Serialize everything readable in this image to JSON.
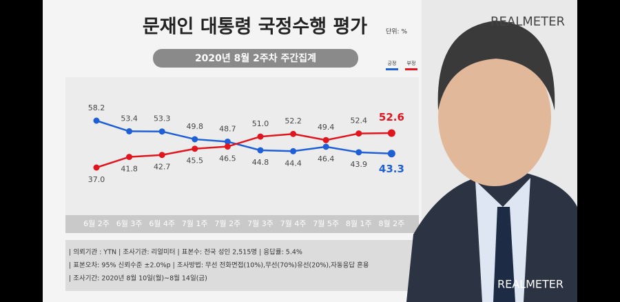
{
  "chart_data": {
    "type": "line",
    "title": "문재인 대통령 국정수행 평가",
    "unit": "단위: %",
    "subtitle": "2020년 8월 2주차 주간집계",
    "categories": [
      "6월 2주",
      "6월 3주",
      "6월 4주",
      "7월 1주",
      "7월 2주",
      "7월 3주",
      "7월 4주",
      "7월 5주",
      "8월 1주",
      "8월 2주"
    ],
    "series": [
      {
        "name": "긍정",
        "color": "#1f5fd6",
        "values": [
          58.2,
          53.4,
          53.3,
          49.8,
          48.7,
          44.8,
          44.4,
          46.4,
          43.9,
          43.3
        ],
        "value_labels": [
          "58.2",
          "53.4",
          "53.3",
          "49.8",
          "48.7",
          "44.8",
          "44.4",
          "46.4",
          "43.9",
          "43.3"
        ]
      },
      {
        "name": "부정",
        "color": "#e0161e",
        "values": [
          37.0,
          41.8,
          42.7,
          45.5,
          46.5,
          51.0,
          52.2,
          49.4,
          52.4,
          52.6
        ],
        "value_labels": [
          "37.0",
          "41.8",
          "42.7",
          "45.5",
          "46.5",
          "51.0",
          "52.2",
          "49.4",
          "52.4",
          "52.6"
        ]
      }
    ]
  },
  "notes": [
    "| 의뢰기관 : YTN   |  조사기관: 리얼미터   |  표본수: 전국 성인 2,515명   |  응답률: 5.4%",
    "| 표본오차: 95% 신뢰수준 ±2.0%p   |  조사방법: 무선 전화면접(10%),무선(70%)유선(20%),자동응답 혼용",
    "| 조사기간: 2020년 8월 10일(월)~8월 14일(금)"
  ],
  "watermarks": [
    "REALMETER",
    "REALMETER"
  ]
}
